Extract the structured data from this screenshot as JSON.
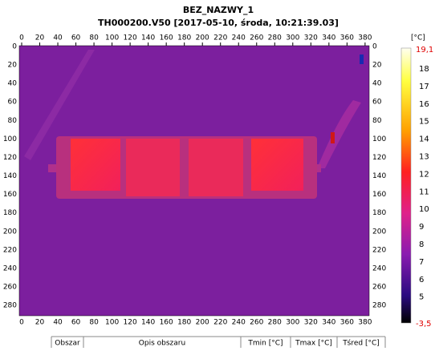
{
  "header": {
    "title": "BEZ_NAZWY_1",
    "subtitle": "TH000200.V50 [2017-05-10, środa, 10:21:39.03]"
  },
  "image_axes": {
    "x_ticks": [
      0,
      20,
      40,
      60,
      80,
      100,
      120,
      140,
      160,
      180,
      200,
      220,
      240,
      260,
      280,
      300,
      320,
      340,
      360,
      380
    ],
    "y_ticks": [
      0,
      20,
      40,
      60,
      80,
      100,
      120,
      140,
      160,
      180,
      200,
      220,
      240,
      260,
      280
    ]
  },
  "color_scale": {
    "unit": "[°C]",
    "max_label": "19,1",
    "min_label": "-3,5",
    "ticks": [
      18,
      17,
      16,
      15,
      14,
      13,
      12,
      11,
      10,
      9,
      8,
      7,
      6,
      5
    ]
  },
  "table": {
    "headers": [
      "Obszar",
      "Opis obszaru",
      "Tmin [°C]",
      "Tmax [°C]",
      "Tśred [°C]"
    ]
  }
}
